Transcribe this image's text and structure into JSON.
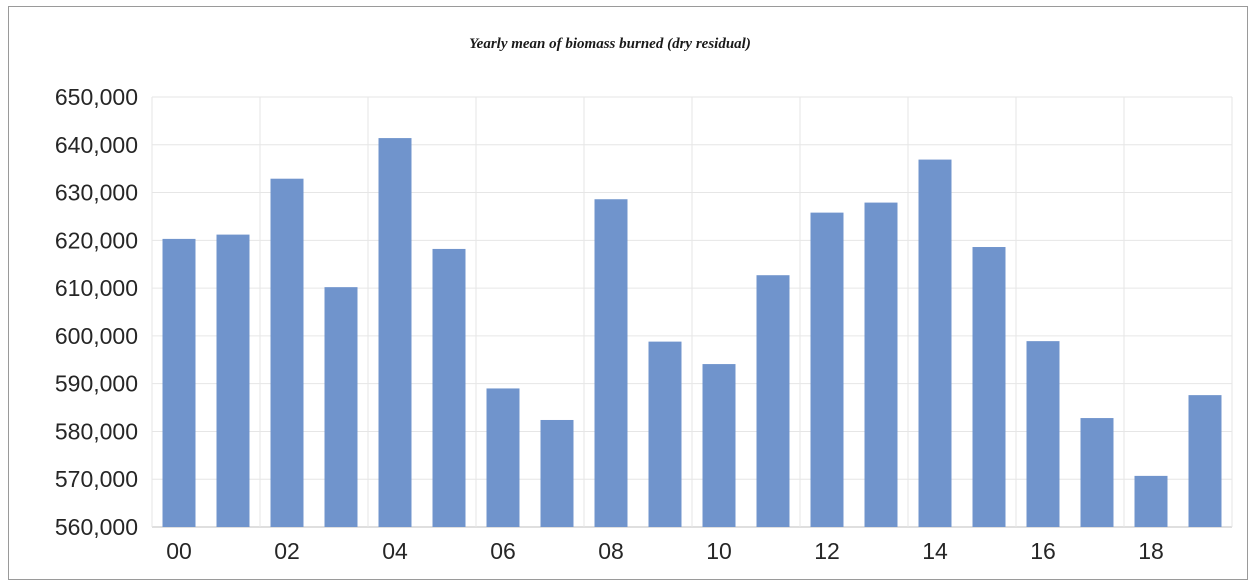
{
  "chart_data": {
    "type": "bar",
    "title": "Yearly mean of biomass burned (dry residual)",
    "xlabel": "",
    "ylabel": "",
    "categories": [
      "00",
      "01",
      "02",
      "03",
      "04",
      "05",
      "06",
      "07",
      "08",
      "09",
      "10",
      "11",
      "12",
      "13",
      "14",
      "15",
      "16",
      "17",
      "18",
      "19"
    ],
    "x_tick_labels": [
      "00",
      "02",
      "04",
      "06",
      "08",
      "10",
      "12",
      "14",
      "16",
      "18"
    ],
    "values": [
      620300,
      621200,
      632900,
      610200,
      641400,
      618200,
      589000,
      582400,
      628600,
      598800,
      594100,
      612700,
      625800,
      627900,
      636900,
      618600,
      598900,
      582800,
      570700,
      587600
    ],
    "ylim": [
      560000,
      650000
    ],
    "y_ticks": [
      "560,000",
      "570,000",
      "580,000",
      "590,000",
      "600,000",
      "610,000",
      "620,000",
      "630,000",
      "640,000",
      "650,000"
    ],
    "grid": true,
    "bar_color": "#7094cc",
    "grid_color": "#e6e6e6"
  }
}
